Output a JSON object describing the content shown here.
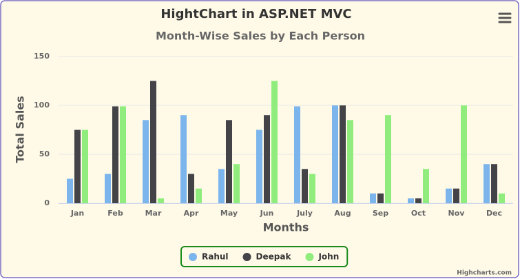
{
  "chart_data": {
    "type": "bar",
    "title": "HightChart in ASP.NET MVC",
    "subtitle": "Month-Wise Sales by Each Person",
    "x_label": "Months",
    "y_label": "Total Sales",
    "categories": [
      "Jan",
      "Feb",
      "Mar",
      "Apr",
      "May",
      "Jun",
      "July",
      "Aug",
      "Sep",
      "Oct",
      "Nov",
      "Dec"
    ],
    "series": [
      {
        "name": "Rahul",
        "color": "#7cb5ec",
        "values": [
          25,
          30,
          85,
          90,
          35,
          75,
          99,
          100,
          10,
          5,
          15,
          40
        ]
      },
      {
        "name": "Deepak",
        "color": "#434348",
        "values": [
          75,
          99,
          125,
          30,
          85,
          90,
          35,
          100,
          10,
          5,
          15,
          40
        ]
      },
      {
        "name": "John",
        "color": "#90ed7d",
        "values": [
          75,
          99,
          5,
          15,
          40,
          125,
          30,
          85,
          90,
          35,
          100,
          10
        ]
      }
    ],
    "ylim": [
      0,
      150
    ],
    "yticks": [
      0,
      50,
      100,
      150
    ],
    "grid": true,
    "legend_position": "bottom",
    "legend_border_color": "#1a8a1a",
    "credits": "Highcharts.com"
  }
}
